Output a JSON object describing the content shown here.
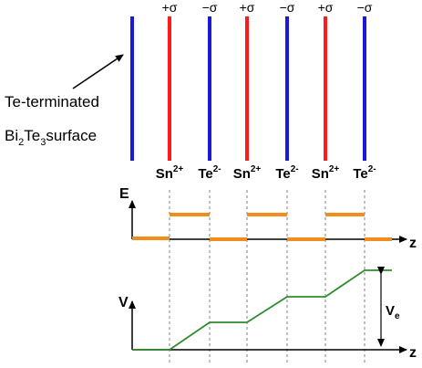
{
  "top_labels": [
    "+σ",
    "−σ",
    "+σ",
    "−σ",
    "+σ",
    "−σ"
  ],
  "ions": [
    {
      "base": "Sn",
      "charge": "2+"
    },
    {
      "base": "Te",
      "charge": "2-"
    },
    {
      "base": "Sn",
      "charge": "2+"
    },
    {
      "base": "Te",
      "charge": "2-"
    },
    {
      "base": "Sn",
      "charge": "2+"
    },
    {
      "base": "Te",
      "charge": "2-"
    }
  ],
  "surface_label": {
    "line1": "Te-terminated",
    "p1": "Bi",
    "sub1": "2",
    "p2": "Te",
    "sub2": "3",
    "p3": "surface"
  },
  "energy_plot": {
    "y_label": "E",
    "x_label": "z"
  },
  "potential_plot": {
    "y_label": "V",
    "x_label": "z",
    "ve_base": "V",
    "ve_sub": "e"
  },
  "colors": {
    "positive_layer": "#ff1a1a",
    "negative_layer": "#1a1ad6",
    "surface_layer": "#1a1ad6",
    "energy_levels": "#f28c1c",
    "potential_curve": "#2e8b2e",
    "dashed_guides": "#808080",
    "axes": "#000000"
  }
}
